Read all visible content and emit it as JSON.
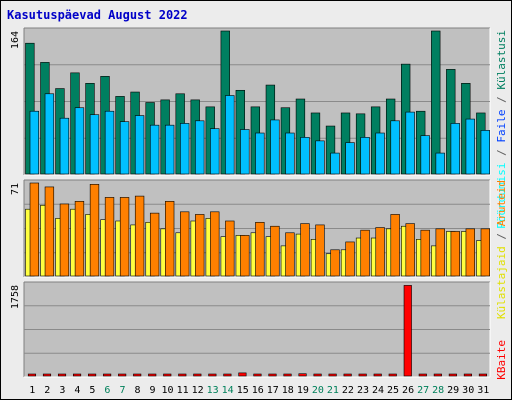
{
  "title": "Kasutuspäevad August 2022",
  "colors": {
    "background": "#ececec",
    "panel": "#c0c0c0",
    "title": "#0000c8",
    "gridline": "#8a8a8a",
    "weekend_label": "#00805a",
    "weekday_label": "#000000",
    "kulastused": "#007f60",
    "failid": "#00c0ff",
    "polleerimised": "#00ffff",
    "kulastajad": "#ffff40",
    "aruanded": "#ff8000",
    "kbaite": "#ff0000",
    "separator": "#606060"
  },
  "right_labels": {
    "top": {
      "polleerimised": "Pöördumisi",
      "sep1": " / ",
      "failid": "Faile",
      "sep2": " / ",
      "kulastused": "Külastusi"
    },
    "mid": {
      "kulastajad": "Külastajaid",
      "sep": " / ",
      "aruanded": "Aruteid"
    },
    "bot": {
      "kbaite": "KBaite"
    }
  },
  "chart_data": {
    "type": "bar",
    "categories": [
      "1",
      "2",
      "3",
      "4",
      "5",
      "6",
      "7",
      "8",
      "9",
      "10",
      "11",
      "12",
      "13",
      "14",
      "15",
      "16",
      "17",
      "18",
      "19",
      "20",
      "21",
      "22",
      "23",
      "24",
      "25",
      "26",
      "27",
      "28",
      "29",
      "30",
      "31"
    ],
    "weekend_days": [
      "6",
      "7",
      "13",
      "14",
      "20",
      "21",
      "27",
      "28"
    ],
    "panels": [
      {
        "id": "top",
        "ytick_label": "164",
        "ymax": 164,
        "series": [
          {
            "key": "kulastused",
            "values": [
              150,
              128,
              98,
              116,
              104,
              112,
              89,
              94,
              82,
              85,
              92,
              85,
              77,
              164,
              96,
              77,
              102,
              76,
              86,
              70,
              55,
              70,
              69,
              77,
              86,
              126,
              72,
              164,
              120,
              104,
              70
            ]
          },
          {
            "key": "failid",
            "values": [
              72,
              92,
              64,
              76,
              68,
              72,
              60,
              67,
              56,
              56,
              58,
              61,
              52,
              90,
              51,
              47,
              62,
              47,
              42,
              38,
              24,
              36,
              42,
              47,
              61,
              71,
              44,
              24,
              58,
              63,
              50
            ]
          }
        ]
      },
      {
        "id": "mid",
        "ytick_label": "71",
        "ymax": 71,
        "series": [
          {
            "key": "aruanded",
            "values": [
              71,
              68,
              55,
              57,
              70,
              60,
              60,
              61,
              48,
              57,
              49,
              47,
              49,
              42,
              31,
              41,
              38,
              33,
              40,
              39,
              20,
              26,
              35,
              37,
              47,
              40,
              35,
              36,
              34,
              36,
              36
            ]
          },
          {
            "key": "kulastajad",
            "values": [
              51,
              54,
              44,
              51,
              47,
              43,
              42,
              39,
              41,
              36,
              33,
              42,
              44,
              30,
              31,
              33,
              30,
              23,
              32,
              28,
              17,
              20,
              29,
              29,
              36,
              38,
              28,
              23,
              34,
              34,
              27
            ]
          }
        ]
      },
      {
        "id": "bot",
        "ytick_label": "1758",
        "ymax": 1758,
        "series": [
          {
            "key": "kbaite",
            "values": [
              22,
              26,
              16,
              22,
              22,
              24,
              24,
              22,
              14,
              14,
              16,
              14,
              16,
              28,
              60,
              14,
              16,
              20,
              44,
              16,
              14,
              14,
              16,
              14,
              16,
              1750,
              16,
              24,
              16,
              12,
              16
            ]
          }
        ]
      }
    ]
  }
}
